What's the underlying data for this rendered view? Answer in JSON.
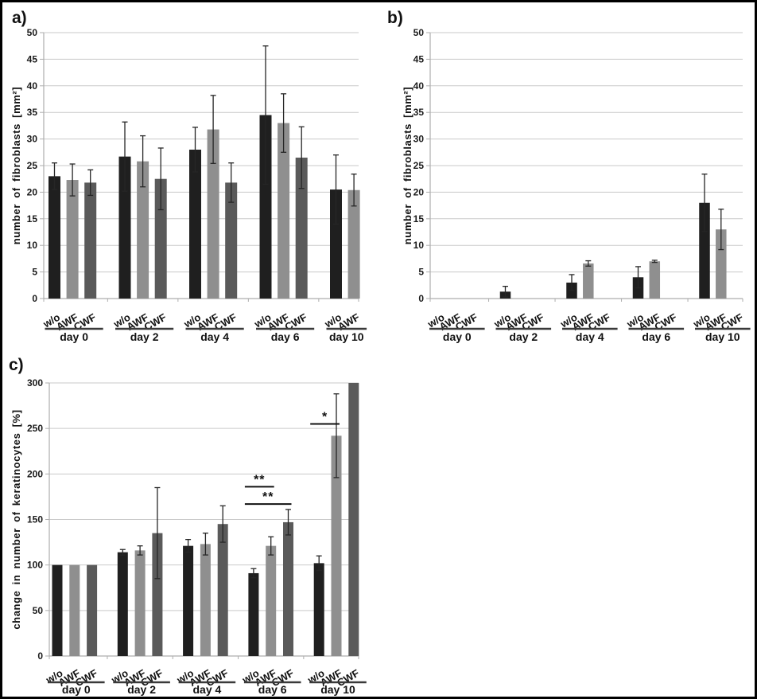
{
  "figure": {
    "background": "#ffffff",
    "border_color": "#000000",
    "gridline_color": "#c9c9c9",
    "axis_color": "#aeaeae",
    "error_bar_color": "#262626",
    "annotation_color": "#111111",
    "bar_colors": {
      "w/o": "#1f1f1f",
      "AWF": "#8f8f8f",
      "CWF": "#5a5a5a"
    }
  },
  "chart_data": [
    {
      "type": "bar",
      "panel_label": "a)",
      "title": "",
      "xlabel": "",
      "ylabel": "number of fibroblasts [mm²]",
      "ylim": [
        0,
        50
      ],
      "ytick_step": 5,
      "grid": true,
      "legend_position": "none",
      "series": [
        "w/o",
        "AWF",
        "CWF"
      ],
      "categories": [
        "day 0",
        "day 2",
        "day 4",
        "day 6",
        "day 10"
      ],
      "groups": [
        {
          "category": "day 0",
          "bars": [
            {
              "series": "w/o",
              "value": 23.0,
              "err": 2.5
            },
            {
              "series": "AWF",
              "value": 22.3,
              "err": 3.0
            },
            {
              "series": "CWF",
              "value": 21.8,
              "err": 2.4
            }
          ]
        },
        {
          "category": "day 2",
          "bars": [
            {
              "series": "w/o",
              "value": 26.7,
              "err": 6.5
            },
            {
              "series": "AWF",
              "value": 25.8,
              "err": 4.8
            },
            {
              "series": "CWF",
              "value": 22.5,
              "err": 5.8
            }
          ]
        },
        {
          "category": "day 4",
          "bars": [
            {
              "series": "w/o",
              "value": 28.0,
              "err": 4.2
            },
            {
              "series": "AWF",
              "value": 31.8,
              "err": 6.4
            },
            {
              "series": "CWF",
              "value": 21.8,
              "err": 3.7
            }
          ]
        },
        {
          "category": "day 6",
          "bars": [
            {
              "series": "w/o",
              "value": 34.5,
              "err": 13.0
            },
            {
              "series": "AWF",
              "value": 33.0,
              "err": 5.5
            },
            {
              "series": "CWF",
              "value": 26.5,
              "err": 5.8
            }
          ]
        },
        {
          "category": "day 10",
          "bars": [
            {
              "series": "w/o",
              "value": 20.5,
              "err": 6.5
            },
            {
              "series": "AWF",
              "value": 20.4,
              "err": 3.0
            }
          ]
        }
      ],
      "annotations": []
    },
    {
      "type": "bar",
      "panel_label": "b)",
      "title": "",
      "xlabel": "",
      "ylabel": "number of fibroblasts [mm²]",
      "ylim": [
        0,
        50
      ],
      "ytick_step": 5,
      "grid": true,
      "legend_position": "none",
      "series": [
        "w/o",
        "AWF",
        "CWF"
      ],
      "categories": [
        "day 0",
        "day 2",
        "day 4",
        "day 6",
        "day 10"
      ],
      "groups": [
        {
          "category": "day 0",
          "bars": [
            {
              "series": "w/o",
              "value": 0,
              "err": 0
            },
            {
              "series": "AWF",
              "value": 0,
              "err": 0
            },
            {
              "series": "CWF",
              "value": 0,
              "err": 0
            }
          ]
        },
        {
          "category": "day 2",
          "bars": [
            {
              "series": "w/o",
              "value": 1.3,
              "err": 1.0
            },
            {
              "series": "AWF",
              "value": 0,
              "err": 0
            },
            {
              "series": "CWF",
              "value": 0,
              "err": 0
            }
          ]
        },
        {
          "category": "day 4",
          "bars": [
            {
              "series": "w/o",
              "value": 3.0,
              "err": 1.5
            },
            {
              "series": "AWF",
              "value": 6.6,
              "err": 0.5
            },
            {
              "series": "CWF",
              "value": 0,
              "err": 0
            }
          ]
        },
        {
          "category": "day 6",
          "bars": [
            {
              "series": "w/o",
              "value": 4.0,
              "err": 2.0
            },
            {
              "series": "AWF",
              "value": 7.0,
              "err": 0.2
            },
            {
              "series": "CWF",
              "value": 0,
              "err": 0
            }
          ]
        },
        {
          "category": "day 10",
          "bars": [
            {
              "series": "w/o",
              "value": 18.0,
              "err": 5.4
            },
            {
              "series": "AWF",
              "value": 13.0,
              "err": 3.8
            },
            {
              "series": "CWF",
              "value": 0,
              "err": 0
            }
          ]
        }
      ],
      "annotations": []
    },
    {
      "type": "bar",
      "panel_label": "c)",
      "title": "",
      "xlabel": "",
      "ylabel": "change in number of keratinocytes [%]",
      "ylim": [
        0,
        300
      ],
      "ytick_step": 50,
      "grid": true,
      "legend_position": "none",
      "series": [
        "w/o",
        "AWF",
        "CWF"
      ],
      "categories": [
        "day 0",
        "day 2",
        "day 4",
        "day 6",
        "day 10"
      ],
      "groups": [
        {
          "category": "day 0",
          "bars": [
            {
              "series": "w/o",
              "value": 100,
              "err": 0
            },
            {
              "series": "AWF",
              "value": 100,
              "err": 0
            },
            {
              "series": "CWF",
              "value": 100,
              "err": 0
            }
          ]
        },
        {
          "category": "day 2",
          "bars": [
            {
              "series": "w/o",
              "value": 114,
              "err": 3
            },
            {
              "series": "AWF",
              "value": 116,
              "err": 5
            },
            {
              "series": "CWF",
              "value": 135,
              "err": 50
            }
          ]
        },
        {
          "category": "day 4",
          "bars": [
            {
              "series": "w/o",
              "value": 121,
              "err": 7
            },
            {
              "series": "AWF",
              "value": 123,
              "err": 12
            },
            {
              "series": "CWF",
              "value": 145,
              "err": 20
            }
          ]
        },
        {
          "category": "day 6",
          "bars": [
            {
              "series": "w/o",
              "value": 91,
              "err": 5
            },
            {
              "series": "AWF",
              "value": 121,
              "err": 10
            },
            {
              "series": "CWF",
              "value": 147,
              "err": 14
            }
          ]
        },
        {
          "category": "day 10",
          "bars": [
            {
              "series": "w/o",
              "value": 102,
              "err": 8
            },
            {
              "series": "AWF",
              "value": 242,
              "err": 46
            },
            {
              "series": "CWF",
              "value": 300,
              "err": 0
            }
          ]
        }
      ],
      "annotations": [
        {
          "label": "**",
          "category": "day 6",
          "from_series": "w/o",
          "to_series": "AWF",
          "y": 186
        },
        {
          "label": "**",
          "category": "day 6",
          "from_series": "w/o",
          "to_series": "CWF",
          "y": 167
        },
        {
          "label": "*",
          "category": "day 10",
          "from_series": "w/o",
          "to_series": "AWF",
          "y": 255
        }
      ]
    }
  ]
}
